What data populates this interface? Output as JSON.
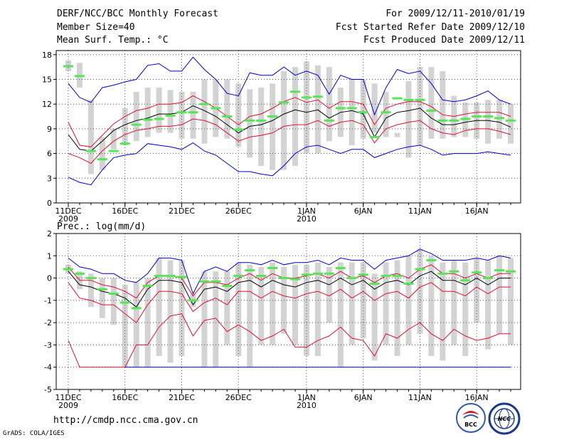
{
  "header": {
    "left_lines": [
      "DERF/NCC/BCC Monthly Forecast",
      "Member Size=40",
      "Mean Surf. Temp.: °C"
    ],
    "right_lines": [
      "For 2009/12/11-2010/01/19",
      "Fcst Started Refer Date 2009/12/10",
      "Fcst Produced Date 2009/12/11"
    ]
  },
  "footer": {
    "url": "http://cmdp.ncc.cma.gov.cn",
    "credit": "GrADS: COLA/IGES"
  },
  "logos": {
    "left": "BCC",
    "right": "NCC"
  },
  "colors": {
    "box": "#d3d3d3",
    "median": "#55e655",
    "mean": "#000000",
    "spread": "#dd1133",
    "extreme": "#0000cc",
    "grid": "#555555"
  },
  "chart_data": [
    {
      "name": "temperature",
      "type": "box",
      "title": "Mean Surf. Temp.: °C",
      "ylim": [
        0,
        18.5
      ],
      "yticks": [
        0,
        3,
        6,
        9,
        12,
        15,
        18
      ],
      "ytick_labels": [
        "0",
        "3",
        "6",
        "9",
        "12",
        "15",
        "18"
      ],
      "x_tick_days": [
        0,
        5,
        10,
        15,
        21,
        26,
        31,
        36
      ],
      "x_tick_labels": [
        "11DEC",
        "16DEC",
        "21DEC",
        "26DEC",
        "1JAN",
        "6JAN",
        "11JAN",
        "16JAN"
      ],
      "x_year_labels": [
        "2009",
        "",
        "",
        "",
        "2010",
        "",
        "",
        ""
      ],
      "n_days": 40,
      "box_low": [
        16.0,
        14.0,
        3.5,
        4.0,
        6.5,
        7.0,
        7.5,
        8.0,
        8.5,
        8.5,
        7.8,
        7.8,
        7.2,
        8.0,
        7.8,
        6.8,
        5.5,
        4.5,
        4.0,
        4.0,
        4.5,
        6.0,
        6.0,
        7.5,
        8.0,
        7.0,
        7.8,
        8.5,
        8.0,
        8.0,
        5.5,
        7.0,
        7.8,
        7.8,
        8.0,
        8.0,
        7.8,
        7.2,
        7.8,
        7.2
      ],
      "box_high": [
        17.3,
        17.0,
        12.5,
        8.0,
        9.0,
        11.5,
        13.5,
        14.0,
        14.0,
        13.7,
        13.5,
        13.5,
        15.0,
        15.0,
        15.0,
        14.5,
        13.8,
        14.0,
        14.5,
        16.0,
        16.5,
        17.2,
        16.7,
        16.5,
        14.0,
        15.0,
        15.0,
        14.5,
        13.5,
        8.5,
        14.8,
        16.5,
        16.5,
        16.0,
        13.0,
        12.2,
        12.2,
        12.5,
        12.5,
        12.0
      ],
      "median": [
        16.6,
        15.4,
        6.3,
        5.3,
        6.3,
        7.2,
        9.5,
        10.1,
        10.2,
        10.6,
        11.0,
        11.0,
        12.0,
        11.5,
        10.5,
        8.9,
        10.0,
        10.0,
        10.5,
        12.2,
        13.5,
        12.8,
        12.9,
        10.0,
        11.5,
        11.5,
        11.0,
        8.0,
        11.0,
        12.7,
        12.5,
        12.5,
        11.2,
        10.0,
        10.0,
        10.2,
        10.5,
        10.5,
        10.3,
        10.0
      ],
      "series": [
        {
          "name": "max",
          "role": "extreme",
          "values": [
            14.5,
            12.8,
            12.2,
            14.0,
            14.3,
            14.7,
            15.0,
            16.7,
            16.9,
            16.0,
            16.0,
            17.7,
            16.2,
            15.0,
            13.3,
            13.0,
            15.8,
            15.5,
            15.5,
            16.5,
            15.5,
            16.0,
            15.5,
            13.2,
            15.5,
            15.0,
            15.0,
            10.7,
            14.0,
            16.2,
            15.7,
            16.0,
            14.5,
            12.5,
            12.3,
            12.5,
            13.0,
            13.6,
            12.5,
            12.0
          ]
        },
        {
          "name": "mean+std",
          "role": "spread",
          "values": [
            9.8,
            7.0,
            6.8,
            8.2,
            9.6,
            10.5,
            11.2,
            11.5,
            12.0,
            12.0,
            12.2,
            13.0,
            12.3,
            11.5,
            10.5,
            9.5,
            10.5,
            10.8,
            11.5,
            12.3,
            12.8,
            12.2,
            12.5,
            11.5,
            12.3,
            12.3,
            12.0,
            9.5,
            11.5,
            12.0,
            12.3,
            12.3,
            11.7,
            10.7,
            10.5,
            10.8,
            11.0,
            11.0,
            11.0,
            10.5
          ]
        },
        {
          "name": "mean",
          "role": "mean",
          "values": [
            8.3,
            6.5,
            6.3,
            7.5,
            8.8,
            9.5,
            10.0,
            10.3,
            10.8,
            10.8,
            11.0,
            11.8,
            11.2,
            10.5,
            9.5,
            8.5,
            9.3,
            9.5,
            10.0,
            10.8,
            11.3,
            11.0,
            11.3,
            10.3,
            11.0,
            11.2,
            10.8,
            8.0,
            10.3,
            11.0,
            11.2,
            11.5,
            10.3,
            9.5,
            9.5,
            9.8,
            10.0,
            10.0,
            9.8,
            9.2
          ]
        },
        {
          "name": "mean-std",
          "role": "spread",
          "values": [
            6.0,
            5.5,
            4.8,
            6.3,
            7.5,
            8.3,
            8.8,
            9.0,
            9.3,
            9.3,
            9.5,
            10.2,
            10.0,
            9.5,
            8.5,
            7.5,
            8.0,
            8.2,
            8.5,
            9.3,
            9.5,
            9.5,
            10.0,
            9.3,
            9.8,
            10.0,
            9.5,
            7.3,
            9.0,
            9.5,
            9.8,
            10.0,
            9.0,
            8.5,
            8.3,
            8.8,
            9.0,
            9.0,
            8.7,
            8.3
          ]
        },
        {
          "name": "min",
          "role": "extreme",
          "values": [
            3.1,
            2.5,
            2.2,
            4.0,
            5.5,
            5.8,
            6.0,
            7.2,
            7.0,
            6.8,
            6.5,
            7.3,
            6.3,
            5.8,
            4.8,
            3.8,
            3.8,
            3.5,
            3.3,
            4.5,
            6.0,
            6.8,
            7.0,
            6.5,
            6.0,
            6.5,
            6.5,
            5.5,
            6.0,
            6.5,
            6.8,
            7.0,
            6.5,
            5.8,
            6.0,
            6.0,
            6.0,
            6.2,
            6.0,
            5.8
          ]
        }
      ]
    },
    {
      "name": "precipitation",
      "type": "box",
      "title": "Prec.: log(mm/d)",
      "ylim": [
        -5,
        2
      ],
      "yticks": [
        -5,
        -4,
        -3,
        -2,
        -1,
        0,
        1,
        2
      ],
      "ytick_labels": [
        "-5",
        "-4",
        "-3",
        "-2",
        "-1",
        "0",
        "1",
        "2"
      ],
      "x_tick_days": [
        0,
        5,
        10,
        15,
        21,
        26,
        31,
        36
      ],
      "x_tick_labels": [
        "11DEC",
        "16DEC",
        "21DEC",
        "26DEC",
        "1JAN",
        "6JAN",
        "11JAN",
        "16JAN"
      ],
      "x_year_labels": [
        "2009",
        "",
        "",
        "",
        "2010",
        "",
        "",
        ""
      ],
      "n_days": 40,
      "box_low": [
        0.2,
        -0.5,
        -1.3,
        -1.8,
        -2.1,
        -4.0,
        -4.0,
        -4.0,
        -3.5,
        -3.8,
        -3.5,
        -1.3,
        -4.0,
        -4.0,
        -3.0,
        -3.5,
        -4.0,
        -3.0,
        -3.0,
        -2.5,
        -3.0,
        -3.5,
        -3.5,
        -2.0,
        -4.0,
        -3.0,
        -2.7,
        -3.7,
        -3.0,
        -3.5,
        -3.0,
        -2.5,
        -3.5,
        -3.7,
        -3.0,
        -3.5,
        -2.0,
        -3.2,
        -2.5,
        -3.0
      ],
      "box_high": [
        0.6,
        0.3,
        0.2,
        0.0,
        0.0,
        -0.3,
        -0.2,
        0.0,
        0.9,
        0.8,
        0.8,
        -0.7,
        0.3,
        0.3,
        0.3,
        0.7,
        0.6,
        0.5,
        0.7,
        0.5,
        0.6,
        0.6,
        0.7,
        0.5,
        0.7,
        0.7,
        0.7,
        0.2,
        0.7,
        0.8,
        1.0,
        1.3,
        1.0,
        0.7,
        0.8,
        0.7,
        0.9,
        0.8,
        1.0,
        0.9
      ],
      "median": [
        0.4,
        0.2,
        0.0,
        -0.5,
        -0.7,
        -1.1,
        -1.35,
        -0.35,
        0.1,
        0.1,
        0.05,
        -1.0,
        -0.15,
        -0.15,
        -0.35,
        0.1,
        0.35,
        0.1,
        0.45,
        0.0,
        -0.05,
        0.15,
        0.2,
        0.2,
        0.45,
        0.0,
        0.15,
        -0.25,
        0.1,
        0.1,
        -0.25,
        0.4,
        0.8,
        0.2,
        0.3,
        -0.1,
        0.25,
        0.0,
        0.35,
        0.3
      ]
    }
  ]
}
